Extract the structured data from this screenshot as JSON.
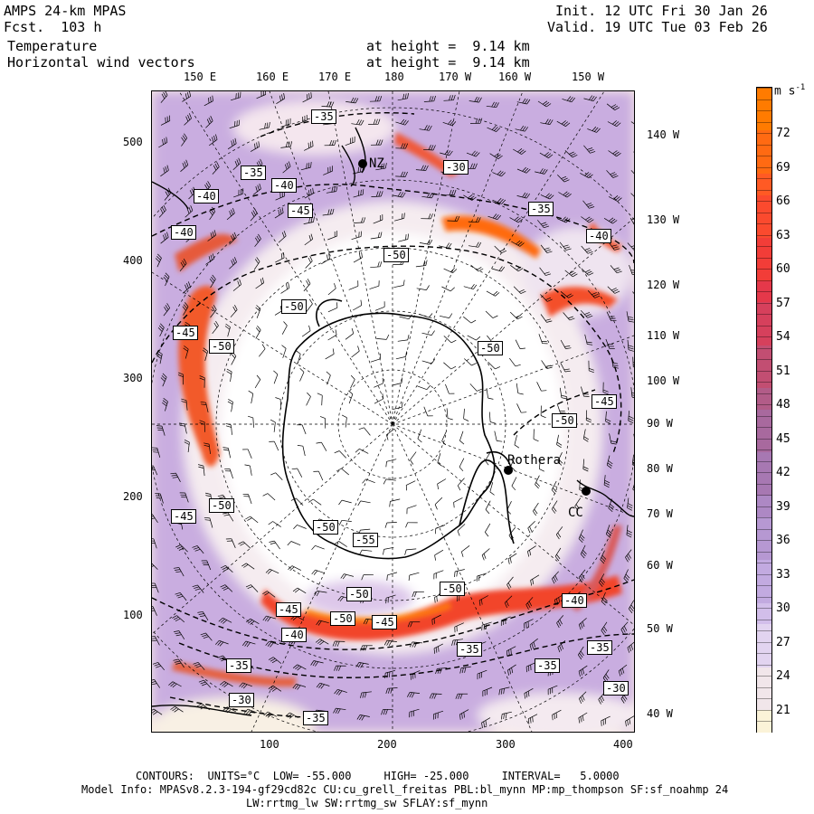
{
  "header": {
    "model": "AMPS 24-km MPAS",
    "forecast": "Fcst.  103 h",
    "field1": "Temperature",
    "field2": "Horizontal wind vectors",
    "height1": "at height =  9.14 km",
    "height2": "at height =  9.14 km",
    "init": "Init. 12 UTC Fri 30 Jan 26",
    "valid": "Valid. 19 UTC Tue 03 Feb 26"
  },
  "top_lon_labels": [
    "150 E",
    "160 E",
    "170 E",
    "180",
    "170 W",
    "160 W",
    "150 W"
  ],
  "right_lon_labels": [
    "140 W",
    "130 W",
    "120 W",
    "110 W",
    "100 W",
    "90 W",
    "80 W",
    "70 W",
    "60 W",
    "50 W",
    "40 W"
  ],
  "y_ticks": [
    "500",
    "400",
    "300",
    "200",
    "100"
  ],
  "x_ticks": [
    "100",
    "200",
    "300",
    "400"
  ],
  "colorbar": {
    "unit": "m s",
    "unit_exp": "-1",
    "labels": [
      "72",
      "69",
      "66",
      "63",
      "60",
      "57",
      "54",
      "51",
      "48",
      "45",
      "42",
      "39",
      "36",
      "33",
      "30",
      "27",
      "24",
      "21"
    ],
    "colors": [
      "#ff7b00",
      "#ff6a12",
      "#ff5a24",
      "#fb4a2e",
      "#f23d38",
      "#e5384a",
      "#d6405c",
      "#c24e72",
      "#b25c88",
      "#a8699e",
      "#a778b2",
      "#ad88c4",
      "#b698d2",
      "#c2aae0",
      "#d2beea",
      "#e2d4f0",
      "#f1e6ea",
      "#fbf3d8"
    ]
  },
  "contour_labels": [
    {
      "text": "-35"
    },
    {
      "text": "-35"
    },
    {
      "text": "-40"
    },
    {
      "text": "-40"
    },
    {
      "text": "-45"
    },
    {
      "text": "-40"
    },
    {
      "text": "-30"
    },
    {
      "text": "-35"
    },
    {
      "text": "-40"
    },
    {
      "text": "-50"
    },
    {
      "text": "-50"
    },
    {
      "text": "-45"
    },
    {
      "text": "-50"
    },
    {
      "text": "-50"
    },
    {
      "text": "-45"
    },
    {
      "text": "-50"
    },
    {
      "text": "-50"
    },
    {
      "text": "-45"
    },
    {
      "text": "-50"
    },
    {
      "text": "-55"
    },
    {
      "text": "-50"
    },
    {
      "text": "-50"
    },
    {
      "text": "-40"
    },
    {
      "text": "-45"
    },
    {
      "text": "-40"
    },
    {
      "text": "-50"
    },
    {
      "text": "-45"
    },
    {
      "text": "-35"
    },
    {
      "text": "-35"
    },
    {
      "text": "-35"
    },
    {
      "text": "-35"
    },
    {
      "text": "-30"
    },
    {
      "text": "-35"
    },
    {
      "text": "-30"
    }
  ],
  "stations": [
    "NZ",
    "Rothera",
    "CC"
  ],
  "footer": {
    "contours": "CONTOURS:  UNITS=°C  LOW= -55.000     HIGH= -25.000     INTERVAL=   5.0000",
    "model_info": "Model Info: MPASv8.2.3-194-gf29cd82c CU:cu_grell_freitas PBL:bl_mynn MP:mp_thompson SF:sf_noahmp 24",
    "model_info2": "LW:rrtmg_lw SW:rrtmg_sw SFLAY:sf_mynn"
  }
}
